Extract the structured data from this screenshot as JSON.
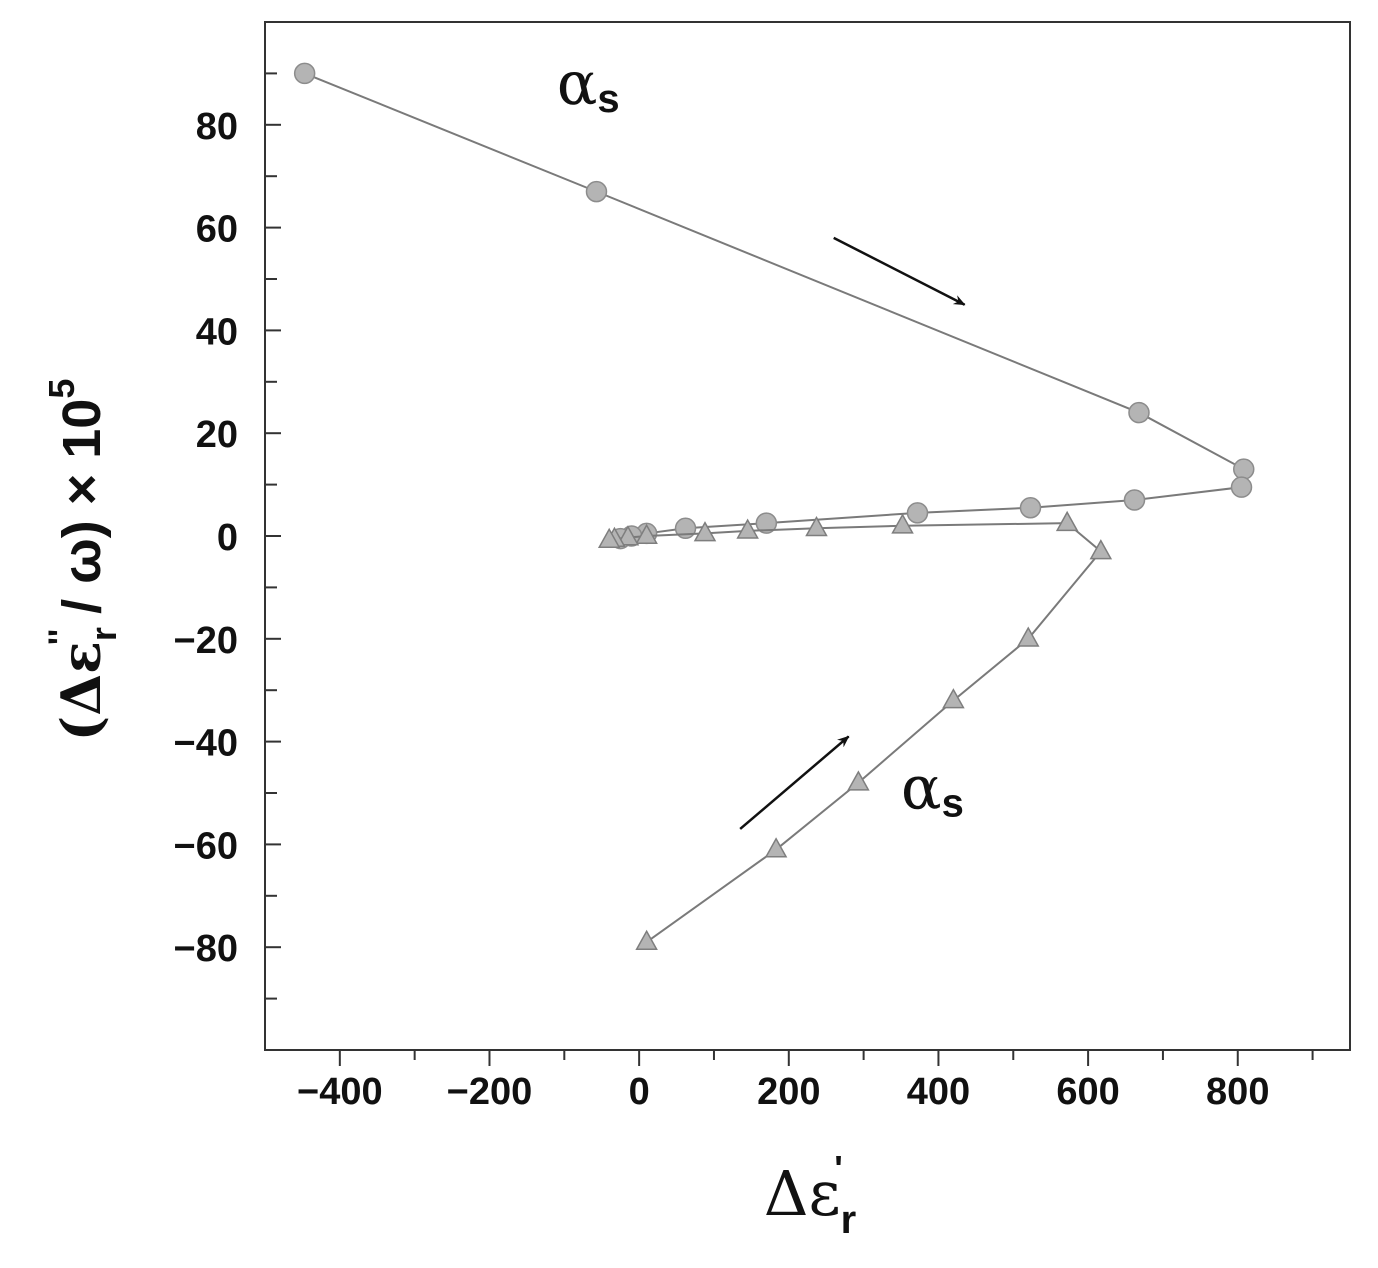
{
  "chart_data": {
    "type": "line",
    "xlabel": {
      "prefix": "Δε",
      "sub": "r",
      "sup": "'"
    },
    "ylabel": {
      "open": "(Δε",
      "sub": "r",
      "sup": "''",
      "rest": " / ω) × 10",
      "exp": "5"
    },
    "xlim": [
      -500,
      950
    ],
    "ylim": [
      -100,
      100
    ],
    "x_ticks": [
      -400,
      -200,
      0,
      200,
      400,
      600,
      800
    ],
    "x_tick_labels": [
      "−400",
      "−200",
      "0",
      "200",
      "400",
      "600",
      "800"
    ],
    "y_ticks": [
      -80,
      -60,
      -40,
      -20,
      0,
      20,
      40,
      60,
      80
    ],
    "y_tick_labels": [
      "−80",
      "−60",
      "−40",
      "−20",
      "0",
      "20",
      "40",
      "60",
      "80"
    ],
    "grid": false,
    "legend": "none",
    "annotations": [
      {
        "text": "α",
        "sub": "s",
        "x": -110,
        "y": 84
      },
      {
        "text": "α",
        "sub": "s",
        "x": 350,
        "y": -53
      }
    ],
    "arrows": [
      {
        "from": [
          260,
          58
        ],
        "to": [
          435,
          45
        ]
      },
      {
        "from": [
          135,
          -57
        ],
        "to": [
          280,
          -39
        ]
      }
    ],
    "series": [
      {
        "marker": "circle",
        "color": "#b4b4b4",
        "x": [
          -447,
          -57,
          668,
          808,
          805,
          662,
          523,
          372,
          170,
          62,
          10,
          -10,
          -25
        ],
        "y": [
          90,
          67,
          24,
          13,
          9.5,
          7,
          5.5,
          4.5,
          2.5,
          1.5,
          0.5,
          0,
          -0.5
        ]
      },
      {
        "marker": "triangle",
        "color": "#b4b4b4",
        "x": [
          10,
          183,
          293,
          420,
          520,
          617,
          572,
          352,
          237,
          145,
          88,
          10,
          -15,
          -33,
          -40
        ],
        "y": [
          -79,
          -61,
          -48,
          -32,
          -20,
          -3,
          2.5,
          2,
          1.5,
          1,
          0.5,
          0,
          -0.3,
          -0.6,
          -0.8
        ]
      }
    ]
  }
}
